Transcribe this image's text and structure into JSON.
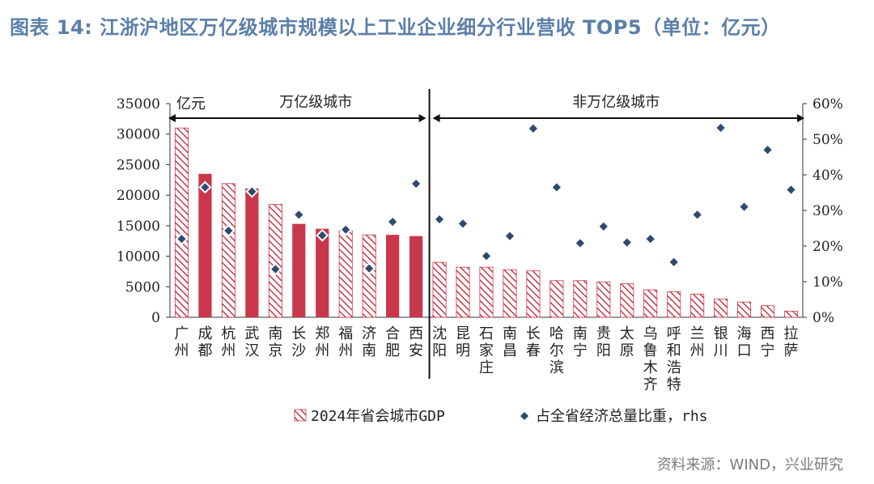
{
  "header": {
    "title": "图表 14:   江浙沪地区万亿级城市规模以上工业企业细分行业营收 TOP5（单位：亿元）"
  },
  "source": "资料来源：WIND，兴业研究",
  "colors": {
    "bar": "#c8384a",
    "hatch": "#c8384a",
    "marker_fill": "#2f4a6e",
    "marker_stroke": "#ffffff",
    "title": "#5b7fa8"
  },
  "chart_data": {
    "type": "bar",
    "unit_label": "亿元",
    "categories": [
      "广州",
      "成都",
      "杭州",
      "武汉",
      "南京",
      "长沙",
      "郑州",
      "福州",
      "济南",
      "合肥",
      "西安",
      "沈阳",
      "昆明",
      "石家庄",
      "南昌",
      "长春",
      "哈尔滨",
      "南宁",
      "贵阳",
      "太原",
      "乌鲁木齐",
      "呼和浩特",
      "兰州",
      "银川",
      "海口",
      "西宁",
      "拉萨"
    ],
    "bar_style": [
      "hatched",
      "solid",
      "hatched",
      "solid",
      "hatched",
      "solid",
      "solid",
      "hatched",
      "hatched",
      "solid",
      "solid",
      "hatched",
      "hatched",
      "hatched",
      "hatched",
      "hatched",
      "hatched",
      "hatched",
      "hatched",
      "hatched",
      "hatched",
      "hatched",
      "hatched",
      "hatched",
      "hatched",
      "hatched",
      "hatched"
    ],
    "series": [
      {
        "name": "2024年省会城市GDP",
        "axis": "left",
        "values": [
          31000,
          23500,
          21900,
          21100,
          18500,
          15300,
          14500,
          14200,
          13500,
          13500,
          13300,
          9000,
          8200,
          8200,
          7800,
          7600,
          6000,
          6000,
          5800,
          5500,
          4500,
          4200,
          3800,
          3000,
          2500,
          1900,
          1000
        ]
      },
      {
        "name": "占全省经济总量比重，rhs",
        "axis": "right",
        "values": [
          22,
          36.5,
          24.3,
          35.3,
          13.5,
          28.8,
          23,
          24.6,
          13.7,
          26.8,
          37.5,
          27.5,
          26.3,
          17.2,
          22.8,
          53,
          36.5,
          20.8,
          25.5,
          21,
          22,
          15.5,
          28.8,
          53.2,
          31,
          47,
          35.8
        ]
      }
    ],
    "yleft": {
      "min": 0,
      "max": 35000,
      "step": 5000,
      "ticks": [
        "0",
        "5000",
        "10000",
        "15000",
        "20000",
        "25000",
        "30000",
        "35000"
      ]
    },
    "yright": {
      "min": 0,
      "max": 60,
      "step": 10,
      "ticks": [
        "0%",
        "10%",
        "20%",
        "30%",
        "40%",
        "50%",
        "60%"
      ]
    },
    "groups": [
      {
        "label": "万亿级城市",
        "count": 11
      },
      {
        "label": "非万亿级城市",
        "count": 16
      }
    ],
    "grid": false,
    "legend_position": "bottom"
  }
}
